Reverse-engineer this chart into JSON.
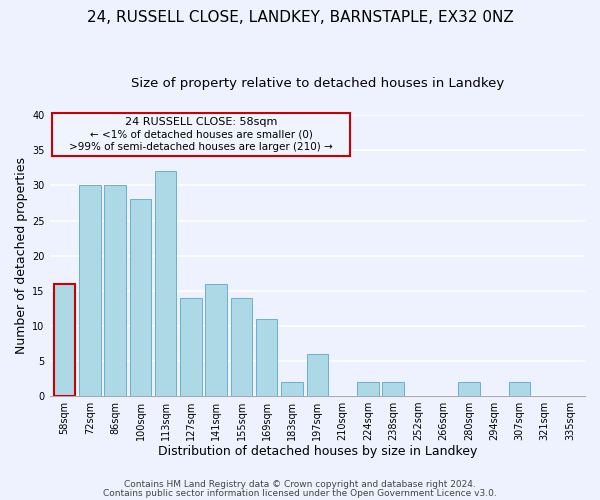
{
  "title1": "24, RUSSELL CLOSE, LANDKEY, BARNSTAPLE, EX32 0NZ",
  "title2": "Size of property relative to detached houses in Landkey",
  "xlabel": "Distribution of detached houses by size in Landkey",
  "ylabel": "Number of detached properties",
  "bar_labels": [
    "58sqm",
    "72sqm",
    "86sqm",
    "100sqm",
    "113sqm",
    "127sqm",
    "141sqm",
    "155sqm",
    "169sqm",
    "183sqm",
    "197sqm",
    "210sqm",
    "224sqm",
    "238sqm",
    "252sqm",
    "266sqm",
    "280sqm",
    "294sqm",
    "307sqm",
    "321sqm",
    "335sqm"
  ],
  "bar_values": [
    16,
    30,
    30,
    28,
    32,
    14,
    16,
    14,
    11,
    2,
    6,
    0,
    2,
    2,
    0,
    0,
    2,
    0,
    2,
    0,
    0
  ],
  "bar_color": "#add8e6",
  "bar_edge_color": "#6baed6",
  "highlight_index": 0,
  "highlight_edge_color": "#cc0000",
  "ylim": [
    0,
    40
  ],
  "yticks": [
    0,
    5,
    10,
    15,
    20,
    25,
    30,
    35,
    40
  ],
  "annotation_title": "24 RUSSELL CLOSE: 58sqm",
  "annotation_line1": "← <1% of detached houses are smaller (0)",
  "annotation_line2": ">99% of semi-detached houses are larger (210) →",
  "annotation_box_edge": "#cc0000",
  "annotation_box_fill": "#f0f4ff",
  "footer1": "Contains HM Land Registry data © Crown copyright and database right 2024.",
  "footer2": "Contains public sector information licensed under the Open Government Licence v3.0.",
  "bg_color": "#eef2ff",
  "grid_color": "#ffffff",
  "title1_fontsize": 11,
  "title2_fontsize": 9.5,
  "axis_label_fontsize": 9,
  "tick_fontsize": 7,
  "footer_fontsize": 6.5
}
